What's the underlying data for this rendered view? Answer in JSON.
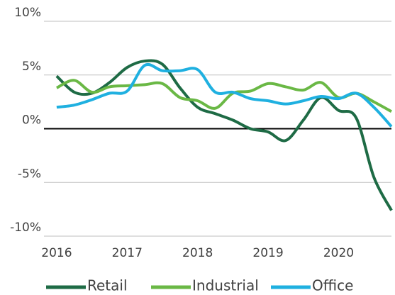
{
  "chart_data": {
    "type": "line",
    "x": [
      2016,
      2016.25,
      2016.5,
      2016.75,
      2017,
      2017.25,
      2017.5,
      2017.75,
      2018,
      2018.25,
      2018.5,
      2018.75,
      2019,
      2019.25,
      2019.5,
      2019.75,
      2020,
      2020.25,
      2020.5,
      2020.75
    ],
    "series": [
      {
        "name": "Retail",
        "color": "#1e6b45",
        "values": [
          4.9,
          3.4,
          3.3,
          4.3,
          5.7,
          6.3,
          6.0,
          3.8,
          2.0,
          1.4,
          0.8,
          0.0,
          -0.3,
          -1.1,
          0.8,
          2.9,
          1.7,
          1.0,
          -4.5,
          -7.6
        ]
      },
      {
        "name": "Industrial",
        "color": "#6ab845",
        "values": [
          3.8,
          4.5,
          3.4,
          3.9,
          4.0,
          4.1,
          4.2,
          2.9,
          2.6,
          1.9,
          3.3,
          3.5,
          4.2,
          3.9,
          3.6,
          4.3,
          2.9,
          3.3,
          2.5,
          1.6
        ]
      },
      {
        "name": "Office",
        "color": "#1fb0e0",
        "values": [
          2.0,
          2.2,
          2.7,
          3.3,
          3.5,
          5.9,
          5.4,
          5.4,
          5.5,
          3.4,
          3.4,
          2.8,
          2.6,
          2.3,
          2.6,
          3.0,
          2.8,
          3.3,
          2.0,
          0.2
        ]
      }
    ],
    "xlim": [
      2015.82,
      2020.75
    ],
    "xticks": [
      2016,
      2017,
      2018,
      2019,
      2020
    ],
    "ylim": [
      -10,
      10
    ],
    "yticks": [
      {
        "value": -10,
        "label": "-10%"
      },
      {
        "value": -5,
        "label": "-5%"
      },
      {
        "value": 0,
        "label": "0%"
      },
      {
        "value": 5,
        "label": "5%"
      },
      {
        "value": 10,
        "label": "10%"
      }
    ],
    "grid": true,
    "legend": "bottom"
  }
}
